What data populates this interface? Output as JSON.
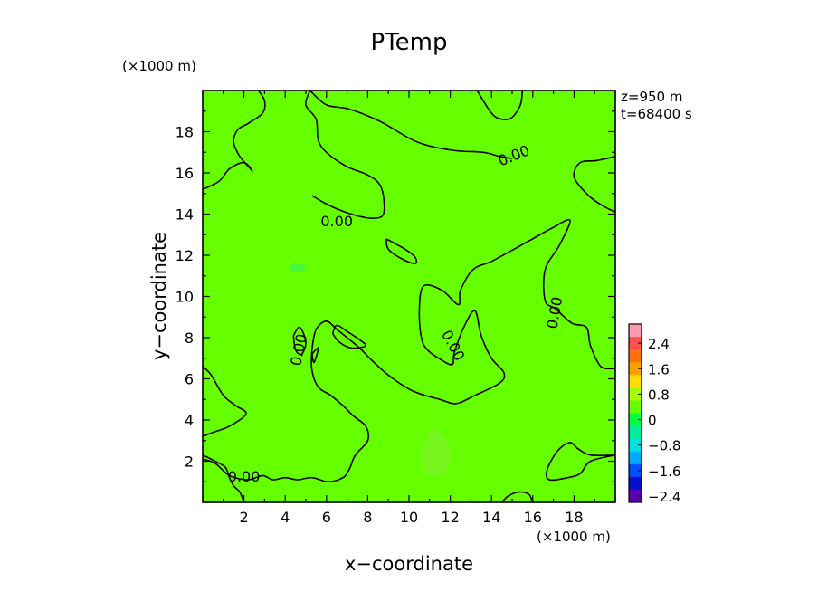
{
  "chart_data": {
    "type": "contour",
    "title": "PTemp",
    "xlabel": "x−coordinate",
    "ylabel": "y−coordinate",
    "x_unit": "(×1000 m)",
    "y_unit": "(×1000 m)",
    "annotations": [
      "z=950 m",
      "t=68400 s"
    ],
    "xlim": [
      0,
      20
    ],
    "ylim": [
      0,
      20
    ],
    "x_ticks": [
      2,
      4,
      6,
      8,
      10,
      12,
      14,
      16,
      18
    ],
    "y_ticks": [
      2,
      4,
      6,
      8,
      10,
      12,
      14,
      16,
      18
    ],
    "x_tick_labels": [
      "2",
      "4",
      "6",
      "8",
      "10",
      "12",
      "14",
      "16",
      "18"
    ],
    "y_tick_labels": [
      "2",
      "4",
      "6",
      "8",
      "10",
      "12",
      "14",
      "16",
      "18"
    ],
    "contour_level_label": "0.00",
    "contour_lines": [
      [
        [
          0,
          15.2
        ],
        [
          0.8,
          15.6
        ],
        [
          1.3,
          16.2
        ],
        [
          2.0,
          16.5
        ],
        [
          2.4,
          16.1
        ],
        [
          1.8,
          16.8
        ],
        [
          1.5,
          17.5
        ],
        [
          1.7,
          18.1
        ],
        [
          2.2,
          18.4
        ],
        [
          2.9,
          18.9
        ],
        [
          3.0,
          19.5
        ],
        [
          2.7,
          20
        ]
      ],
      [
        [
          5.2,
          20
        ],
        [
          5.0,
          19.3
        ],
        [
          5.5,
          18.6
        ],
        [
          5.6,
          17.6
        ],
        [
          6.0,
          17.0
        ],
        [
          7.0,
          16.3
        ],
        [
          8.0,
          15.9
        ],
        [
          8.6,
          15.4
        ],
        [
          8.8,
          14.5
        ],
        [
          8.7,
          13.9
        ],
        [
          8.1,
          13.8
        ],
        [
          7.2,
          14.0
        ],
        [
          6.4,
          14.3
        ],
        [
          5.8,
          14.6
        ],
        [
          5.3,
          14.9
        ]
      ],
      [
        [
          5.2,
          20
        ],
        [
          6.0,
          19.3
        ],
        [
          7.1,
          19.1
        ],
        [
          8.6,
          18.5
        ],
        [
          10.4,
          17.5
        ],
        [
          12.1,
          17.1
        ],
        [
          13.6,
          17.0
        ],
        [
          14.4,
          16.8
        ],
        [
          15.0,
          16.7
        ]
      ],
      [
        [
          13.3,
          20
        ],
        [
          14.0,
          18.9
        ],
        [
          14.5,
          18.6
        ],
        [
          15.0,
          18.7
        ],
        [
          15.4,
          19.3
        ],
        [
          15.5,
          20
        ]
      ],
      [
        [
          20,
          16.8
        ],
        [
          19.1,
          16.6
        ],
        [
          18.3,
          16.5
        ],
        [
          18.0,
          15.8
        ],
        [
          18.7,
          14.9
        ],
        [
          19.4,
          14.4
        ],
        [
          20,
          14.1
        ]
      ],
      [
        [
          8.9,
          12.8
        ],
        [
          9.8,
          12.3
        ],
        [
          10.3,
          11.9
        ],
        [
          10.3,
          11.6
        ],
        [
          9.7,
          11.8
        ],
        [
          9.0,
          12.3
        ],
        [
          8.9,
          12.8
        ]
      ],
      [
        [
          20,
          6.5
        ],
        [
          19.3,
          6.6
        ],
        [
          18.8,
          7.6
        ],
        [
          18.6,
          8.5
        ],
        [
          17.9,
          8.7
        ],
        [
          17.1,
          9.4
        ],
        [
          16.6,
          9.8
        ],
        [
          16.6,
          11.3
        ],
        [
          17.3,
          12.5
        ],
        [
          17.8,
          13.7
        ],
        [
          16.9,
          13.3
        ],
        [
          16.0,
          12.8
        ],
        [
          15.1,
          12.3
        ],
        [
          14.0,
          11.7
        ],
        [
          13.1,
          11.3
        ],
        [
          12.5,
          10.3
        ],
        [
          12.4,
          9.6
        ],
        [
          11.6,
          10.3
        ],
        [
          10.7,
          10.5
        ],
        [
          10.5,
          9.3
        ],
        [
          10.6,
          8.0
        ],
        [
          10.9,
          7.4
        ],
        [
          11.6,
          6.9
        ],
        [
          12.1,
          6.7
        ],
        [
          12.2,
          7.3
        ],
        [
          12.7,
          8.6
        ],
        [
          13.2,
          9.3
        ],
        [
          13.5,
          8.1
        ],
        [
          14.0,
          7.0
        ],
        [
          14.6,
          6.3
        ],
        [
          14.4,
          5.8
        ],
        [
          13.2,
          5.2
        ],
        [
          12.3,
          4.8
        ],
        [
          11.5,
          5.0
        ],
        [
          10.2,
          5.4
        ],
        [
          9.1,
          6.1
        ],
        [
          8.3,
          6.8
        ],
        [
          7.6,
          7.5
        ],
        [
          7.0,
          8.0
        ],
        [
          6.5,
          8.4
        ],
        [
          6.0,
          8.8
        ],
        [
          5.5,
          8.4
        ],
        [
          5.3,
          7.4
        ],
        [
          5.3,
          6.4
        ],
        [
          5.6,
          5.6
        ],
        [
          6.2,
          5.2
        ],
        [
          6.8,
          4.7
        ],
        [
          7.3,
          4.2
        ],
        [
          7.9,
          3.7
        ],
        [
          8.0,
          3.0
        ],
        [
          7.4,
          2.3
        ],
        [
          7.1,
          1.6
        ],
        [
          6.8,
          1.2
        ],
        [
          6.1,
          1.0
        ],
        [
          5.3,
          1.2
        ],
        [
          4.6,
          1.1
        ],
        [
          4.0,
          1.2
        ],
        [
          3.4,
          1.1
        ],
        [
          2.9,
          1.3
        ],
        [
          2.2,
          1.1
        ],
        [
          1.3,
          1.3
        ],
        [
          0.6,
          1.9
        ],
        [
          0,
          2.1
        ]
      ],
      [
        [
          4.4,
          8.1
        ],
        [
          4.7,
          8.5
        ],
        [
          5.0,
          7.8
        ],
        [
          4.8,
          7.2
        ],
        [
          4.5,
          7.4
        ],
        [
          4.4,
          8.1
        ]
      ],
      [
        [
          5.3,
          7.2
        ],
        [
          5.6,
          7.5
        ],
        [
          5.4,
          6.8
        ],
        [
          5.3,
          7.2
        ]
      ],
      [
        [
          6.3,
          8.2
        ],
        [
          6.5,
          8.6
        ],
        [
          7.0,
          8.3
        ],
        [
          7.6,
          7.9
        ],
        [
          7.9,
          7.6
        ],
        [
          7.2,
          7.5
        ],
        [
          6.6,
          7.8
        ],
        [
          6.3,
          8.2
        ]
      ],
      [
        [
          0,
          6.6
        ],
        [
          0.4,
          6.2
        ],
        [
          1.0,
          5.2
        ],
        [
          1.6,
          4.7
        ],
        [
          2.1,
          4.3
        ],
        [
          1.3,
          3.7
        ],
        [
          0.5,
          3.4
        ],
        [
          0,
          3.2
        ]
      ],
      [
        [
          20,
          2.3
        ],
        [
          18.8,
          2.0
        ],
        [
          18.3,
          1.4
        ],
        [
          17.7,
          1.2
        ],
        [
          16.8,
          1.1
        ],
        [
          16.7,
          1.6
        ],
        [
          17.2,
          2.5
        ],
        [
          17.8,
          2.9
        ],
        [
          18.2,
          2.6
        ],
        [
          18.8,
          2.3
        ],
        [
          20,
          2.3
        ]
      ],
      [
        [
          14.5,
          0
        ],
        [
          14.8,
          0.3
        ],
        [
          15.3,
          0.5
        ],
        [
          15.8,
          0.4
        ],
        [
          16.0,
          0
        ]
      ],
      [
        [
          0,
          2.3
        ],
        [
          0.6,
          2.0
        ],
        [
          1.1,
          1.7
        ],
        [
          1.3,
          1.2
        ],
        [
          1.5,
          0.8
        ],
        [
          1.8,
          0.5
        ],
        [
          2.0,
          0
        ]
      ]
    ],
    "colorbar": {
      "tick_labels": [
        "2.4",
        "1.6",
        "0.8",
        "0",
        "−0.8",
        "−1.6",
        "−2.4"
      ],
      "colors": [
        "#ff9bb1",
        "#ff5050",
        "#ff7010",
        "#ffa000",
        "#ffdd00",
        "#a5ff00",
        "#66ff00",
        "#00ff40",
        "#00ee99",
        "#00e0e0",
        "#00aaff",
        "#0050ff",
        "#0010cc",
        "#5a00b0"
      ]
    },
    "background_color": "#66ff00"
  }
}
